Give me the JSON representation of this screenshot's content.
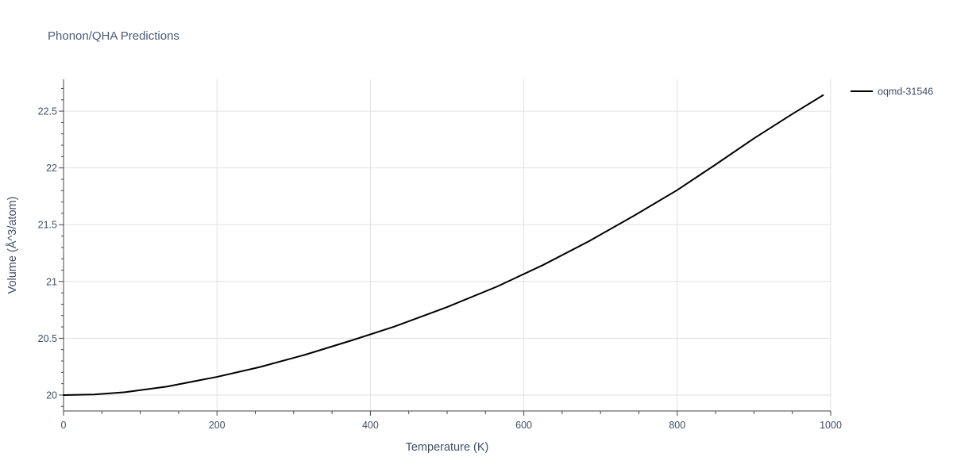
{
  "chart_data": {
    "type": "line",
    "title": "Phonon/QHA Predictions",
    "xlabel": "Temperature (K)",
    "ylabel": "Volume (Å^3/atom)",
    "xlim": [
      0,
      1000
    ],
    "ylim": [
      19.86,
      22.78
    ],
    "x_ticks": [
      "0",
      "200",
      "400",
      "600",
      "800",
      "1000"
    ],
    "y_ticks": [
      "20",
      "20.5",
      "21",
      "21.5",
      "22",
      "22.5"
    ],
    "grid": true,
    "legend_position": "top-right",
    "series": [
      {
        "name": "oqmd-31546",
        "color": "#000000",
        "x": [
          0,
          40,
          80,
          135,
          200,
          255,
          315,
          375,
          430,
          500,
          565,
          625,
          685,
          745,
          800,
          850,
          900,
          950,
          990
        ],
        "y": [
          20.0,
          20.005,
          20.025,
          20.075,
          20.16,
          20.245,
          20.355,
          20.48,
          20.6,
          20.775,
          20.955,
          21.145,
          21.355,
          21.585,
          21.805,
          22.03,
          22.26,
          22.475,
          22.64
        ]
      }
    ]
  }
}
